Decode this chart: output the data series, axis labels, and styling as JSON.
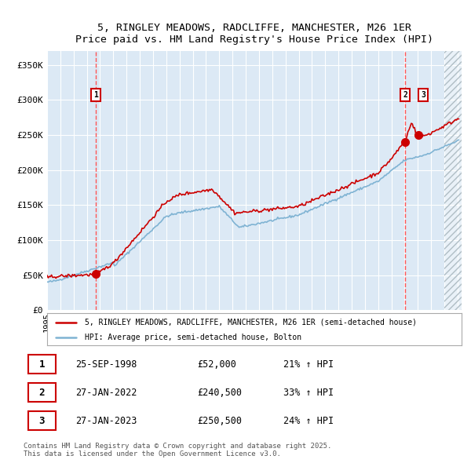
{
  "title_line1": "5, RINGLEY MEADOWS, RADCLIFFE, MANCHESTER, M26 1ER",
  "title_line2": "Price paid vs. HM Land Registry's House Price Index (HPI)",
  "red_label": "5, RINGLEY MEADOWS, RADCLIFFE, MANCHESTER, M26 1ER (semi-detached house)",
  "blue_label": "HPI: Average price, semi-detached house, Bolton",
  "transactions": [
    {
      "num": 1,
      "date": "25-SEP-1998",
      "price": 52000,
      "pct": "21%",
      "dir": "↑"
    },
    {
      "num": 2,
      "date": "27-JAN-2022",
      "price": 240500,
      "pct": "33%",
      "dir": "↑"
    },
    {
      "num": 3,
      "date": "27-JAN-2023",
      "price": 250500,
      "pct": "24%",
      "dir": "↑"
    }
  ],
  "footer": "Contains HM Land Registry data © Crown copyright and database right 2025.\nThis data is licensed under the Open Government Licence v3.0.",
  "bg_color": "#dce9f5",
  "grid_color": "#ffffff",
  "red_color": "#cc0000",
  "blue_color": "#7fb3d3",
  "vline_color": "#ff5555",
  "hatch_color": "#b0bec5",
  "ylim": [
    0,
    370000
  ],
  "yticks": [
    0,
    50000,
    100000,
    150000,
    200000,
    250000,
    300000,
    350000
  ],
  "year_start": 1995,
  "year_end": 2026
}
